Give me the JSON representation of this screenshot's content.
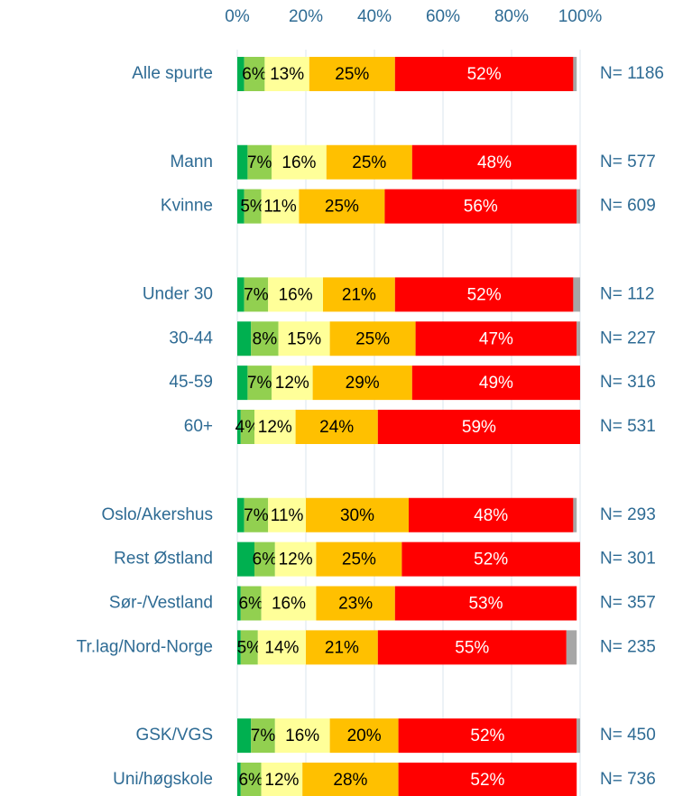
{
  "chart_data": {
    "type": "stacked_bar_horizontal",
    "categories": [
      "Alle spurte",
      null,
      "Mann",
      "Kvinne",
      null,
      "Under 30",
      "30-44",
      "45-59",
      "60+",
      null,
      "Oslo/Akershus",
      "Rest Østland",
      "Sør-/Vestland",
      "Tr.lag/Nord-Norge",
      null,
      "GSK/VGS",
      "Uni/høgskole"
    ],
    "series": [
      {
        "color": "#00b050",
        "values": [
          2,
          null,
          3,
          2,
          null,
          2,
          4,
          3,
          1,
          null,
          2,
          5,
          1,
          1,
          null,
          4,
          1
        ]
      },
      {
        "color": "#92d050",
        "values": [
          6,
          null,
          7,
          5,
          null,
          7,
          8,
          7,
          4,
          null,
          7,
          6,
          6,
          5,
          null,
          7,
          6
        ],
        "value_labels": [
          "6%",
          null,
          "7%",
          "5%",
          null,
          "7%",
          "8%",
          "7%",
          "4%",
          null,
          "7%",
          "6%",
          "6%",
          "5%",
          null,
          "7%",
          "6%"
        ]
      },
      {
        "color": "#ffff99",
        "values": [
          13,
          null,
          16,
          11,
          null,
          16,
          15,
          12,
          12,
          null,
          11,
          12,
          16,
          14,
          null,
          16,
          12
        ],
        "value_labels": [
          "13%",
          null,
          "16%",
          "11%",
          null,
          "16%",
          "15%",
          "12%",
          "12%",
          null,
          "11%",
          "12%",
          "16%",
          "14%",
          null,
          "16%",
          "12%"
        ]
      },
      {
        "color": "#ffc000",
        "values": [
          25,
          null,
          25,
          25,
          null,
          21,
          25,
          29,
          24,
          null,
          30,
          25,
          23,
          21,
          null,
          20,
          28
        ],
        "value_labels": [
          "25%",
          null,
          "25%",
          "25%",
          null,
          "21%",
          "25%",
          "29%",
          "24%",
          null,
          "30%",
          "25%",
          "23%",
          "21%",
          null,
          "20%",
          "28%"
        ]
      },
      {
        "color": "#ff0000",
        "values": [
          52,
          null,
          48,
          56,
          null,
          52,
          47,
          49,
          59,
          null,
          48,
          52,
          53,
          55,
          null,
          52,
          52
        ],
        "value_labels": [
          "52%",
          null,
          "48%",
          "56%",
          null,
          "52%",
          "47%",
          "49%",
          "59%",
          null,
          "48%",
          "52%",
          "53%",
          "55%",
          null,
          "52%",
          "52%"
        ]
      },
      {
        "color": "#a6a6a6",
        "values": [
          1,
          null,
          0,
          1,
          null,
          2,
          1,
          0,
          0,
          null,
          1,
          0,
          0,
          3,
          null,
          1,
          0
        ]
      }
    ],
    "n_labels": [
      "N= 1186",
      null,
      "N= 577",
      "N= 609",
      null,
      "N= 112",
      "N= 227",
      "N= 316",
      "N= 531",
      null,
      "N= 293",
      "N= 301",
      "N= 357",
      "N= 235",
      null,
      "N= 450",
      "N= 736"
    ],
    "xlim": [
      0,
      100
    ],
    "xticks": [
      {
        "value": 0,
        "label": "0%"
      },
      {
        "value": 20,
        "label": "20%"
      },
      {
        "value": 40,
        "label": "40%"
      },
      {
        "value": 60,
        "label": "60%"
      },
      {
        "value": 80,
        "label": "80%"
      },
      {
        "value": 100,
        "label": "100%"
      }
    ],
    "grid": true
  }
}
